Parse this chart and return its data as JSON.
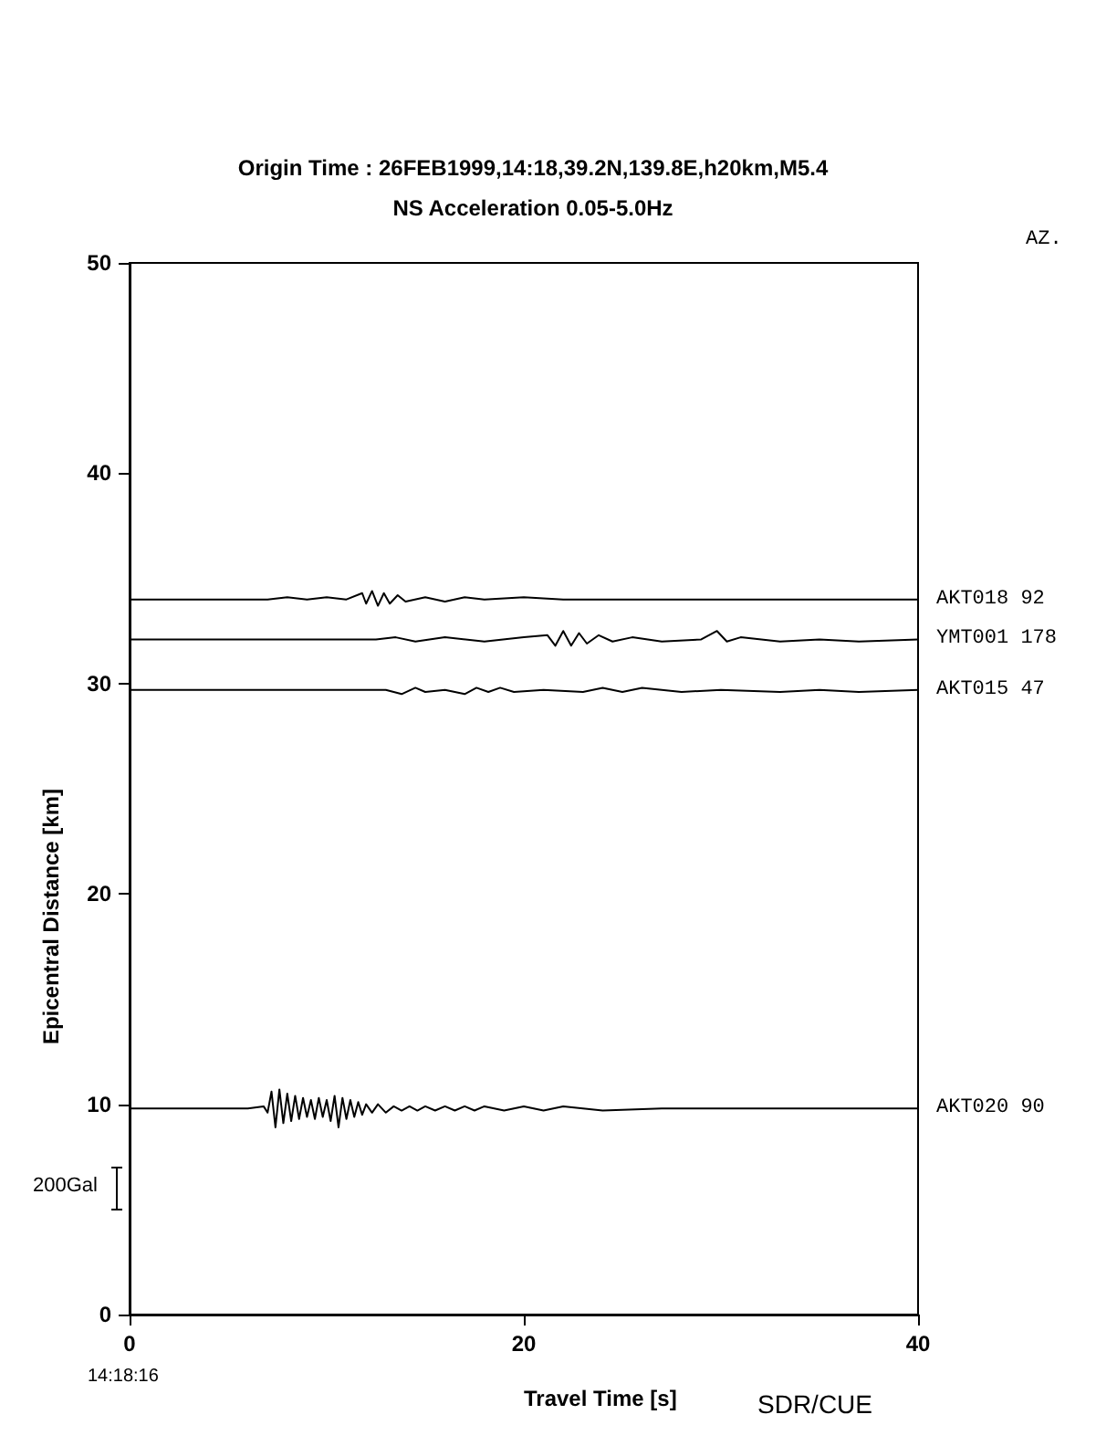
{
  "chart_data": {
    "type": "line",
    "title": "Origin Time : 26FEB1999,14:18,39.2N,139.8E,h20km,M5.4",
    "subtitle": "NS Acceleration 0.05-5.0Hz",
    "xlabel": "Travel Time [s]",
    "ylabel": "Epicentral Distance [km]",
    "annotations": [
      "AZ.",
      "14:18:16",
      "SDR/CUE",
      "200Gal"
    ],
    "xlim": [
      0,
      40
    ],
    "xticks": [
      0,
      20,
      40
    ],
    "ylim": [
      0,
      50
    ],
    "yticks": [
      0,
      10,
      20,
      30,
      40,
      50
    ],
    "grid": false,
    "legend": false,
    "marker": "none",
    "line_style": "solid",
    "series": [
      {
        "name": "AKT018 92",
        "color": "#000000",
        "x": [
          0,
          7,
          8,
          9,
          10,
          11,
          11.8,
          12,
          12.3,
          12.6,
          12.9,
          13.2,
          13.6,
          14,
          15,
          16,
          17,
          18,
          20,
          22,
          25,
          30,
          35,
          40
        ],
        "values": [
          34,
          34,
          34.1,
          34,
          34.1,
          34,
          34.3,
          33.8,
          34.4,
          33.7,
          34.3,
          33.8,
          34.2,
          33.9,
          34.1,
          33.9,
          34.1,
          34,
          34.1,
          34,
          34,
          34,
          34,
          34
        ]
      },
      {
        "name": "YMT001 178",
        "color": "#000000",
        "x": [
          0,
          12.5,
          13.5,
          14.5,
          16,
          18,
          20,
          21.2,
          21.6,
          22,
          22.4,
          22.8,
          23.2,
          23.8,
          24.5,
          25.5,
          27,
          29,
          29.8,
          30.3,
          31,
          33,
          35,
          37,
          40
        ],
        "values": [
          32.1,
          32.1,
          32.2,
          32,
          32.2,
          32,
          32.2,
          32.3,
          31.8,
          32.5,
          31.8,
          32.4,
          31.9,
          32.3,
          32,
          32.2,
          32,
          32.1,
          32.5,
          32,
          32.2,
          32,
          32.1,
          32,
          32.1
        ]
      },
      {
        "name": "AKT015 47",
        "color": "#000000",
        "x": [
          0,
          13,
          13.8,
          14.5,
          15,
          16,
          17,
          17.6,
          18.2,
          18.8,
          19.5,
          21,
          23,
          24,
          25,
          26,
          28,
          30,
          33,
          35,
          37,
          40
        ],
        "values": [
          29.7,
          29.7,
          29.5,
          29.8,
          29.6,
          29.7,
          29.5,
          29.8,
          29.6,
          29.8,
          29.6,
          29.7,
          29.6,
          29.8,
          29.6,
          29.8,
          29.6,
          29.7,
          29.6,
          29.7,
          29.6,
          29.7
        ]
      },
      {
        "name": "AKT020 90",
        "color": "#000000",
        "x": [
          0,
          6,
          6.8,
          7,
          7.2,
          7.4,
          7.6,
          7.8,
          8,
          8.2,
          8.4,
          8.6,
          8.8,
          9,
          9.2,
          9.4,
          9.6,
          9.8,
          10,
          10.2,
          10.4,
          10.6,
          10.8,
          11,
          11.2,
          11.4,
          11.6,
          11.8,
          12,
          12.3,
          12.6,
          13,
          13.4,
          13.8,
          14.2,
          14.6,
          15,
          15.5,
          16,
          16.5,
          17,
          17.5,
          18,
          19,
          20,
          21,
          22,
          24,
          27,
          40
        ],
        "values": [
          9.8,
          9.8,
          9.9,
          9.6,
          10.6,
          8.9,
          10.7,
          9.1,
          10.5,
          9.2,
          10.4,
          9.3,
          10.3,
          9.4,
          10.2,
          9.3,
          10.3,
          9.4,
          10.2,
          9.2,
          10.4,
          8.9,
          10.3,
          9.3,
          10.2,
          9.4,
          10.1,
          9.5,
          10,
          9.6,
          10,
          9.6,
          9.9,
          9.7,
          9.9,
          9.7,
          9.9,
          9.7,
          9.9,
          9.7,
          9.9,
          9.7,
          9.9,
          9.7,
          9.9,
          9.7,
          9.9,
          9.7,
          9.8,
          9.8
        ]
      }
    ]
  }
}
